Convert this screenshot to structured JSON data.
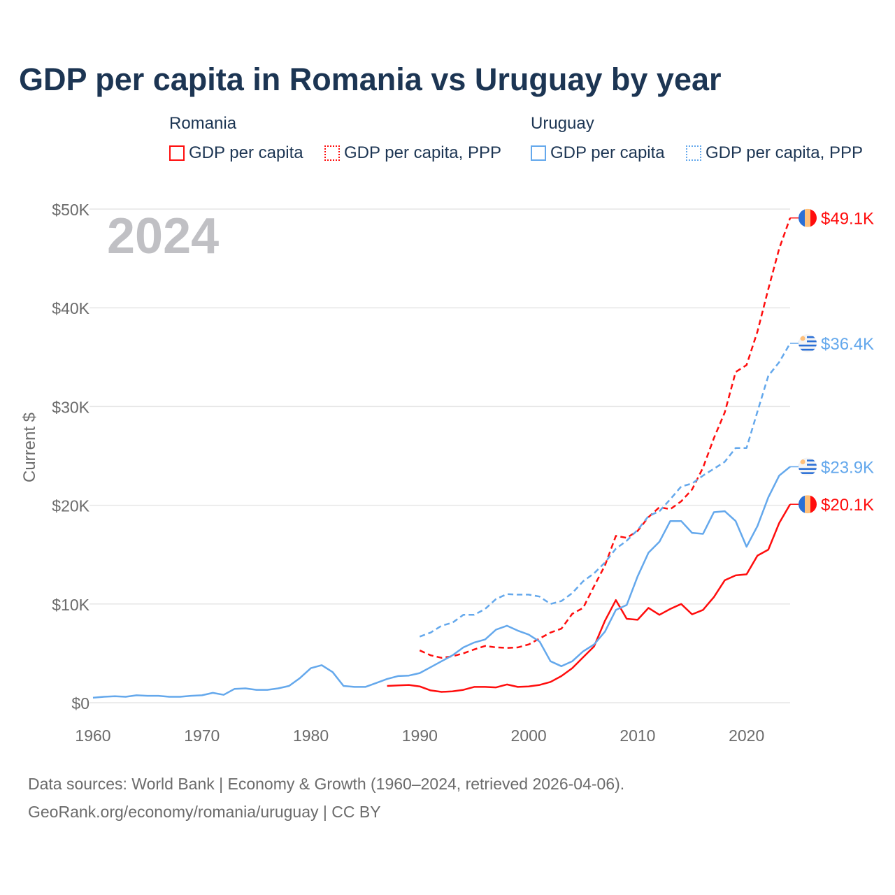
{
  "title": "GDP per capita in Romania vs Uruguay by year",
  "legend": {
    "groups": [
      {
        "name": "Romania",
        "items": [
          "GDP per capita",
          "GDP per capita, PPP"
        ]
      },
      {
        "name": "Uruguay",
        "items": [
          "GDP per capita",
          "GDP per capita, PPP"
        ]
      }
    ]
  },
  "footer": {
    "line1": "Data sources: World Bank | Economy & Growth (1960–2024, retrieved 2026-04-06).",
    "line2": "GeoRank.org/economy/romania/uruguay | CC BY"
  },
  "colors": {
    "romania": "#ff0d0d",
    "uruguay": "#64a8ec",
    "grid": "#e6e6e6",
    "axis_text": "#6b6b6b",
    "year_watermark": "#c0c0c4"
  },
  "chart_data": {
    "type": "line",
    "title": "GDP per capita in Romania vs Uruguay by year",
    "xlabel": "",
    "ylabel": "Current $",
    "xlim": [
      1960,
      2024
    ],
    "ylim": [
      0,
      50000
    ],
    "year_label": "2024",
    "x_ticks": [
      1960,
      1970,
      1980,
      1990,
      2000,
      2010,
      2020
    ],
    "y_ticks": [
      {
        "v": 0,
        "label": "$0"
      },
      {
        "v": 10000,
        "label": "$10K"
      },
      {
        "v": 20000,
        "label": "$20K"
      },
      {
        "v": 30000,
        "label": "$30K"
      },
      {
        "v": 40000,
        "label": "$40K"
      },
      {
        "v": 50000,
        "label": "$50K"
      }
    ],
    "grid": true,
    "legend_position": "top",
    "series": [
      {
        "name": "Romania GDP per capita",
        "country": "romania",
        "dashed": false,
        "start": 1987,
        "end_label": "$20.1K",
        "values": [
          1700,
          1750,
          1800,
          1650,
          1250,
          1100,
          1150,
          1300,
          1600,
          1600,
          1550,
          1850,
          1600,
          1650,
          1800,
          2100,
          2700,
          3500,
          4600,
          5700,
          8300,
          10400,
          8500,
          8400,
          9600,
          8900,
          9500,
          10000,
          8950,
          9400,
          10700,
          12400,
          12900,
          13000,
          14900,
          15500,
          18200,
          20100
        ]
      },
      {
        "name": "Romania GDP per capita, PPP",
        "country": "romania",
        "dashed": true,
        "start": 1990,
        "end_label": "$49.1K",
        "values": [
          5300,
          4800,
          4550,
          4700,
          5000,
          5400,
          5750,
          5600,
          5550,
          5600,
          5900,
          6500,
          7100,
          7500,
          9000,
          9600,
          11800,
          13900,
          16900,
          16700,
          17400,
          18800,
          19800,
          19600,
          20400,
          21600,
          23800,
          26800,
          29400,
          33500,
          34200,
          37600,
          41900,
          46000,
          49100
        ]
      },
      {
        "name": "Uruguay GDP per capita",
        "country": "uruguay",
        "dashed": false,
        "start": 1960,
        "end_label": "$23.9K",
        "values": [
          500,
          600,
          650,
          600,
          750,
          700,
          700,
          600,
          600,
          700,
          750,
          1000,
          800,
          1400,
          1450,
          1300,
          1300,
          1450,
          1700,
          2500,
          3500,
          3800,
          3100,
          1700,
          1600,
          1600,
          2000,
          2400,
          2700,
          2750,
          3000,
          3600,
          4200,
          4800,
          5600,
          6100,
          6400,
          7400,
          7800,
          7300,
          6900,
          6200,
          4200,
          3700,
          4200,
          5200,
          5900,
          7200,
          9400,
          9900,
          12800,
          15200,
          16300,
          18400,
          18400,
          17200,
          17100,
          19300,
          19400,
          18400,
          15800,
          17900,
          20800,
          23000,
          23900
        ]
      },
      {
        "name": "Uruguay GDP per capita, PPP",
        "country": "uruguay",
        "dashed": true,
        "start": 1990,
        "end_label": "$36.4K",
        "values": [
          6700,
          7100,
          7800,
          8100,
          8900,
          8900,
          9500,
          10500,
          11000,
          10950,
          10950,
          10750,
          10000,
          10300,
          11100,
          12300,
          13100,
          14200,
          15600,
          16400,
          17500,
          18900,
          19400,
          20600,
          21900,
          22200,
          23000,
          23700,
          24400,
          25800,
          25800,
          29500,
          33100,
          34500,
          36400
        ]
      }
    ]
  }
}
